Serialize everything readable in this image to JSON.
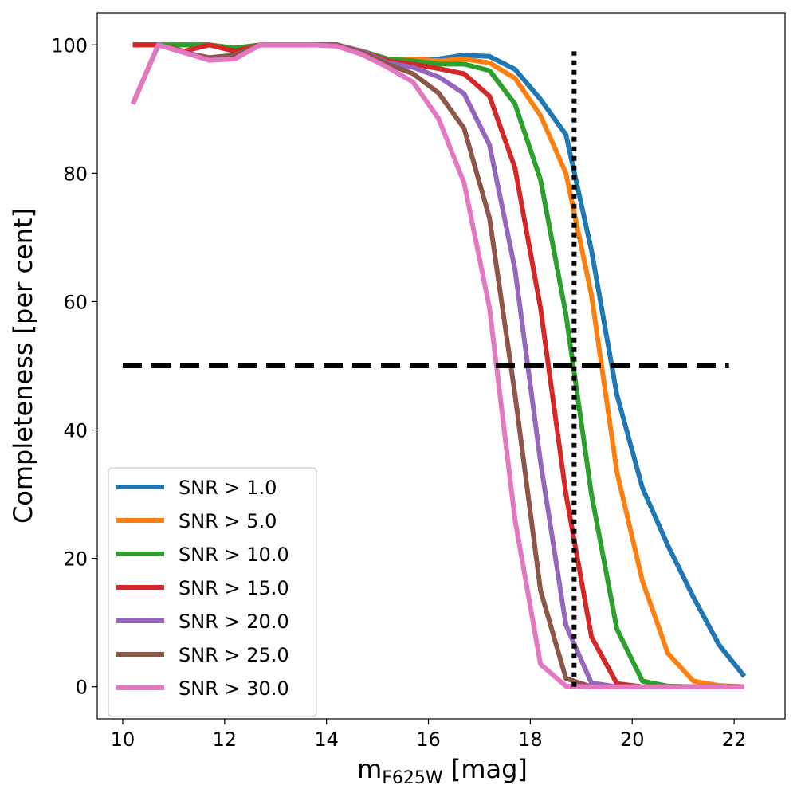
{
  "chart_data": {
    "type": "line",
    "title": "",
    "xlabel_main": "m",
    "xlabel_sub": "F625W",
    "xlabel_unit": " [mag]",
    "ylabel": "Completeness [per cent]",
    "xlim": [
      9.5,
      23.0
    ],
    "ylim": [
      -5,
      105
    ],
    "xticks": [
      10,
      12,
      14,
      16,
      18,
      20,
      22
    ],
    "yticks": [
      0,
      20,
      40,
      60,
      80,
      100
    ],
    "grid": false,
    "legend_position": "lower-left",
    "x": [
      10.2,
      10.7,
      11.2,
      11.7,
      12.2,
      12.7,
      13.2,
      13.7,
      14.2,
      14.7,
      15.2,
      15.7,
      16.2,
      16.7,
      17.2,
      17.7,
      18.2,
      18.7,
      19.2,
      19.7,
      20.2,
      20.7,
      21.2,
      21.7,
      22.2
    ],
    "series": [
      {
        "name": "SNR > 1.0",
        "color": "#1f77b4",
        "values": [
          100,
          100,
          100,
          100,
          99.5,
          100,
          100,
          100,
          100,
          99,
          97.8,
          97.8,
          97.8,
          98.4,
          98.2,
          96.2,
          91.5,
          86,
          68,
          45.5,
          31,
          22,
          14,
          6.6,
          1.6
        ]
      },
      {
        "name": "SNR > 5.0",
        "color": "#ff7f0e",
        "values": [
          100,
          100,
          100,
          100,
          99.5,
          100,
          100,
          100,
          100,
          99,
          97.8,
          97.8,
          97.5,
          97.8,
          97.2,
          94.8,
          89,
          80,
          61,
          33.5,
          16.5,
          5.2,
          0.9,
          0.2,
          0
        ]
      },
      {
        "name": "SNR > 10.0",
        "color": "#2ca02c",
        "values": [
          100,
          100,
          100,
          100,
          99.5,
          100,
          100,
          100,
          100,
          99,
          97.8,
          97.5,
          97,
          97,
          96,
          90.8,
          79,
          58,
          30,
          9,
          0.9,
          0.1,
          0,
          0,
          0
        ]
      },
      {
        "name": "SNR > 15.0",
        "color": "#d62728",
        "values": [
          100,
          100,
          99,
          100,
          99,
          100,
          100,
          100,
          100,
          99,
          97.5,
          97,
          96.3,
          95.5,
          92,
          80.8,
          59,
          30,
          7.8,
          0.5,
          0,
          0,
          0,
          0,
          0
        ]
      },
      {
        "name": "SNR > 20.0",
        "color": "#9467bd",
        "values": [
          90.8,
          100,
          98.8,
          98,
          98.4,
          100,
          100,
          100,
          100,
          99,
          97.2,
          96.5,
          95,
          92.4,
          84.4,
          65,
          35,
          9.6,
          0.6,
          0,
          0,
          0,
          0,
          0,
          0
        ]
      },
      {
        "name": "SNR > 25.0",
        "color": "#8c564b",
        "values": [
          90.8,
          100,
          98.8,
          98,
          98.4,
          100,
          100,
          100,
          100,
          98.8,
          97,
          95.5,
          92.5,
          87,
          73,
          45.5,
          15,
          1.3,
          0,
          0,
          0,
          0,
          0,
          0,
          0
        ]
      },
      {
        "name": "SNR > 30.0",
        "color": "#e377c2",
        "values": [
          90.8,
          100,
          98.8,
          97.6,
          97.8,
          100,
          100,
          100,
          99.8,
          98.5,
          96.5,
          94.2,
          88.5,
          78.5,
          59,
          26,
          3.5,
          0.1,
          0,
          0,
          0,
          0,
          0,
          0,
          0
        ]
      }
    ],
    "reference_lines": {
      "horizontal": {
        "y": 50,
        "x_from": 10.0,
        "x_to": 21.9,
        "style": "dashed",
        "color": "#000000"
      },
      "vertical": {
        "x": 18.86,
        "y_from": 0,
        "y_to": 99,
        "style": "dotted",
        "color": "#000000"
      }
    }
  }
}
